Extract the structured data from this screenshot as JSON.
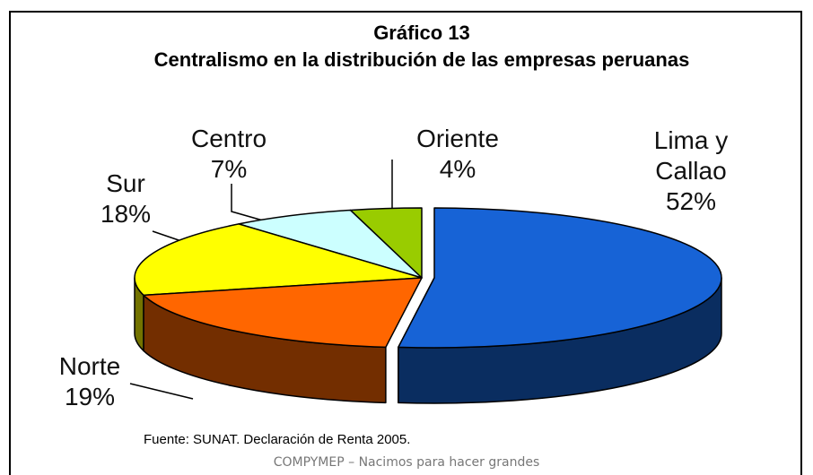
{
  "chart_data": {
    "type": "pie3d",
    "title": "Gráfico 13",
    "subtitle": "Centralismo en la distribución de las empresas peruanas",
    "categories": [
      "Lima y Callao",
      "Norte",
      "Sur",
      "Centro",
      "Oriente"
    ],
    "values": [
      52,
      19,
      18,
      7,
      4
    ],
    "value_labels": [
      "52%",
      "19%",
      "18%",
      "7%",
      "4%"
    ],
    "colors": [
      "#1763d6",
      "#ff6600",
      "#ffff00",
      "#ccffff",
      "#99cc00"
    ],
    "source": "Fuente: SUNAT. Declaración de Renta 2005."
  },
  "footer": "COMPYMEP – Nacimos para hacer grandes"
}
